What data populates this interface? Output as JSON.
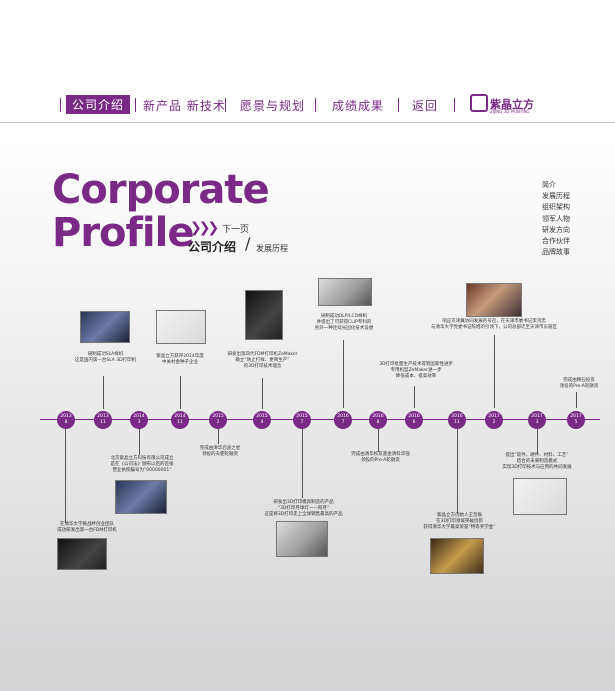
{
  "nav": {
    "items": [
      "公司介绍",
      "新产品 新技术",
      "愿景与规划",
      "成绩成果",
      "返回"
    ],
    "brand": "紫晶立方",
    "brand_sub": "ZIJING 3D PRINTING"
  },
  "hero": {
    "title_line1": "Corporate",
    "title_line2": "Profile",
    "next_label": "下一页",
    "sub_main": "公司介绍",
    "sub_secondary": "发展历程"
  },
  "sidebar": [
    "简介",
    "发展历程",
    "组织架构",
    "领军人物",
    "研发方向",
    "合作伙伴",
    "品牌故事"
  ],
  "timeline": [
    {
      "year": "2013",
      "month": "8"
    },
    {
      "year": "2013",
      "month": "11"
    },
    {
      "year": "2014",
      "month": "3"
    },
    {
      "year": "2014",
      "month": "11"
    },
    {
      "year": "2015",
      "month": "2"
    },
    {
      "year": "2015",
      "month": "4"
    },
    {
      "year": "2015",
      "month": "7"
    },
    {
      "year": "2016",
      "month": "7"
    },
    {
      "year": "2016",
      "month": "8"
    },
    {
      "year": "2016",
      "month": "6"
    },
    {
      "year": "2016",
      "month": "11"
    },
    {
      "year": "2017",
      "month": "2"
    },
    {
      "year": "2017",
      "month": "3"
    },
    {
      "year": "2017",
      "month": "5"
    }
  ],
  "captions": {
    "c2013_11": "研制成功SLA样机\n这是国内第一台SLA 3D打印机",
    "c2014_11": "紫晶立方获评2014年度\n中关村金种子企业",
    "c2015_4": "研发出第四代FDM打印机ZeMaker\n确立“防止打样、更简生产”\n的3D打印技术理念",
    "c2016_7": "研制成功DLP/LCD样机\n并提出了可获得CLIP专利的\n另外一种连续光固化技术设想",
    "c2017_2": "响应京津冀协同发展的号召，在天津市委书记李鸿忠\n与清华大学党委书记陈旭的引领下，公司总部迁至天津市东丽区",
    "c2016_6": "3D打印批量生产技术得到国家性进步\n专用机型ZeMaker进一步\n降低成本、提高效率",
    "c2017_5": "完成由精石投资\n领投的Pre-A轮融资",
    "c2013_8": "在清华大学挑战杯创业团队\n成功研发出第一台FDM打印机",
    "c2014_3": "北京紫晶立方科技有限公司成立\n是在《公司法》颁布以后的首张\n营业执照编号为“00000001”",
    "c2015_2": "完成由清华启迪之星\n领投的天使轮融资",
    "c2015_7": "研发出3D打印模具制造的产品\n“3D打印月球灯——阿月”\n这是将3D打印走上全球销售最高的产品",
    "c2016_8": "完成由清华校友基金清科华强\n领投的Pre-A轮融资",
    "c2016_11": "紫晶立方创始人王哲振\n在3D打印领域突破创新\n获得清华大学最高荣誉“特等奖学金”",
    "c2017_3": "提出“软件、硬件、材料、工艺”\n结合的未来制造模式\n实现3D打印技术与应用的共同发展"
  },
  "colors": {
    "accent": "#7a2a86",
    "ink": "#333333"
  }
}
